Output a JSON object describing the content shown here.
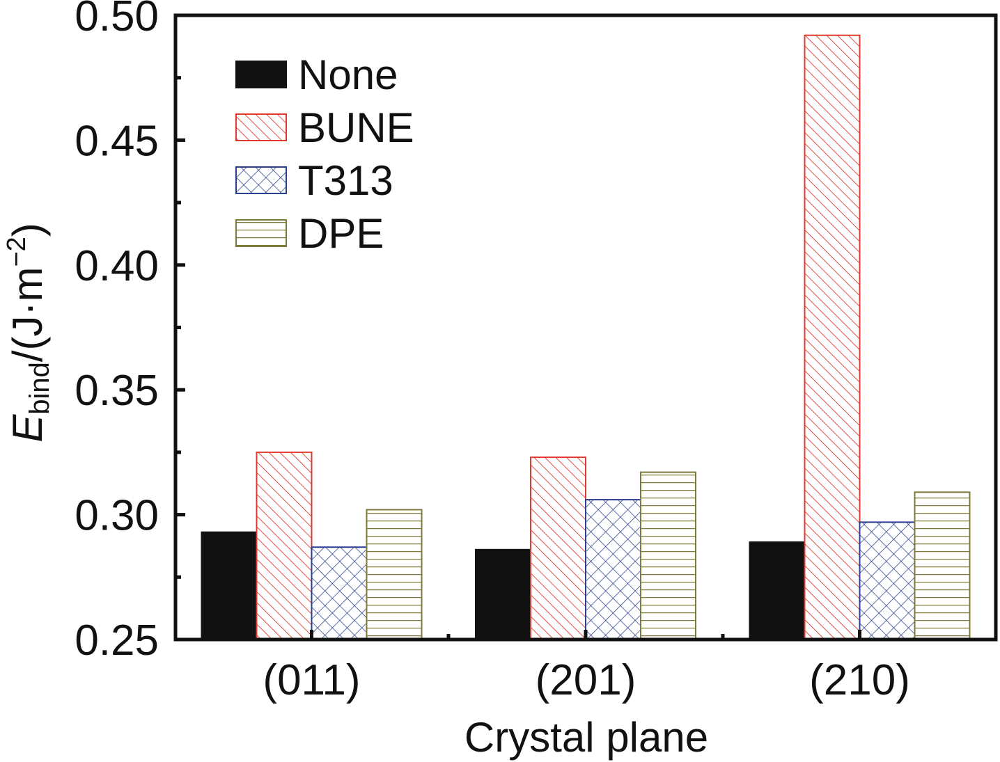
{
  "chart_data": {
    "type": "bar",
    "categories": [
      "(011)",
      "(201)",
      "(210)"
    ],
    "series": [
      {
        "name": "None",
        "values": [
          0.293,
          0.286,
          0.289
        ],
        "color": "#111111",
        "pattern": "solid"
      },
      {
        "name": "BUNE",
        "values": [
          0.325,
          0.323,
          0.492
        ],
        "color": "#e03a2f",
        "pattern": "diagonal"
      },
      {
        "name": "T313",
        "values": [
          0.287,
          0.306,
          0.297
        ],
        "color": "#2b3f8f",
        "pattern": "crosshatch"
      },
      {
        "name": "DPE",
        "values": [
          0.302,
          0.317,
          0.309
        ],
        "color": "#7d7a3a",
        "pattern": "horizontal"
      }
    ],
    "xlabel": "Crystal plane",
    "ylabel": {
      "symbol": "E",
      "subscript": "bind",
      "unit": "/(J·m",
      "exponent": "−2",
      "close": ")"
    },
    "ylim": [
      0.25,
      0.5
    ],
    "yticks": [
      "0.25",
      "0.30",
      "0.35",
      "0.40",
      "0.45",
      "0.50"
    ],
    "grid": false,
    "legend_position": "top-left"
  }
}
